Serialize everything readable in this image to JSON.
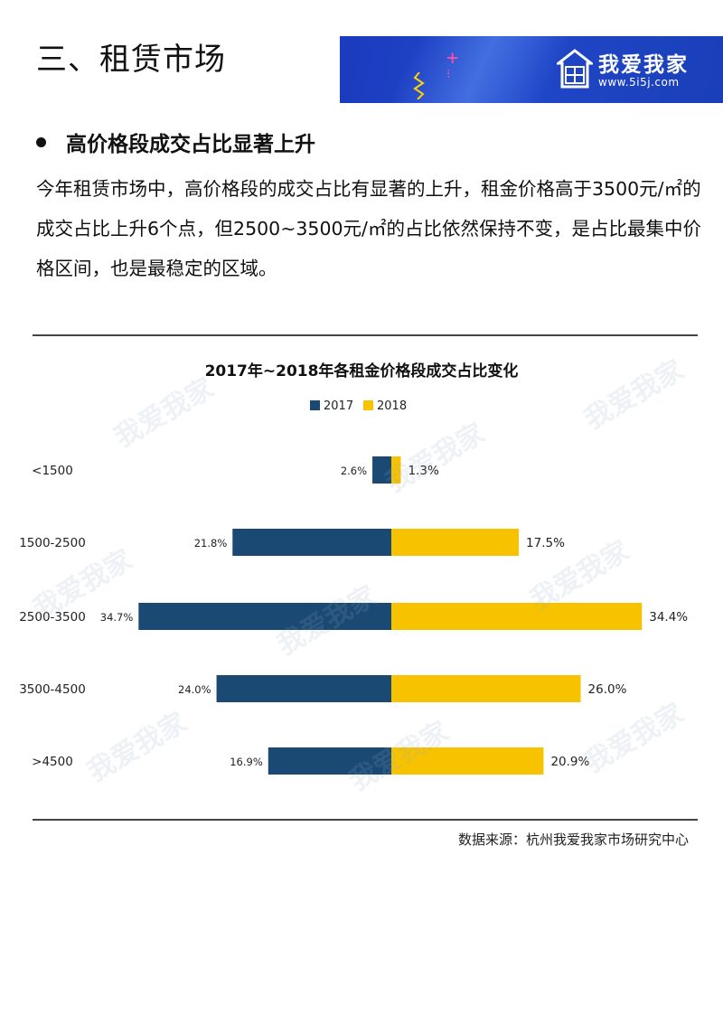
{
  "header": {
    "section_title": "三、租赁市场",
    "brand_name": "我爱我家",
    "brand_url": "www.5i5j.com",
    "brand_color": "#1f45c6"
  },
  "subheading": "高价格段成交占比显著上升",
  "paragraph": "今年租赁市场中，高价格段的成交占比有显著的上升，租金价格高于3500元/㎡的成交占比上升6个点，但2500~3500元/㎡的占比依然保持不变，是占比最集中价格区间，也是最稳定的区域。",
  "chart_data": {
    "type": "bar",
    "orientation": "horizontal-diverging",
    "title": "2017年~2018年各租金价格段成交占比变化",
    "categories": [
      "<1500",
      "1500-2500",
      "2500-3500",
      "3500-4500",
      ">4500"
    ],
    "series": [
      {
        "name": "2017",
        "values": [
          2.6,
          21.8,
          34.7,
          24.0,
          16.9
        ],
        "labels": [
          "2.6%",
          "21.8%",
          "34.7%",
          "24.0%",
          "16.9%"
        ],
        "color": "#1a4a74"
      },
      {
        "name": "2018",
        "values": [
          1.3,
          17.5,
          34.4,
          26.0,
          20.9
        ],
        "labels": [
          "1.3%",
          "17.5%",
          "34.4%",
          "26.0%",
          "20.9%"
        ],
        "color": "#f7c300"
      }
    ],
    "legend_position": "top-center",
    "grid": false,
    "xlim": [
      -35,
      35
    ]
  },
  "source": "数据来源：杭州我爱我家市场研究中心"
}
